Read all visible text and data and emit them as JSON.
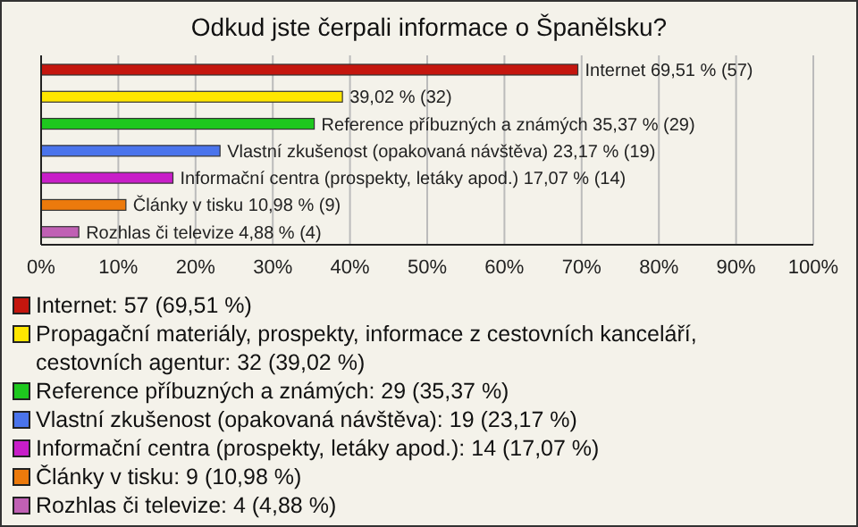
{
  "chart_data": {
    "type": "bar",
    "orientation": "horizontal",
    "stacked": true,
    "title": "Odkud jste čerpali informace o Španělsku?",
    "categories": [
      null,
      null,
      null,
      null,
      null,
      null,
      null
    ],
    "series": [
      {
        "name": "Internet: 57 (69,51 %)",
        "color": "#c4160e",
        "values": [
          69.51,
          null,
          null,
          null,
          null,
          null,
          null
        ],
        "value_labels": [
          "Internet 69,51 % (57)",
          null,
          null,
          null,
          null,
          null,
          null
        ]
      },
      {
        "name": "Propagační materiály, prospekty, informace z cestovních kanceláří, cestovních agentur: 32 (39,02 %)",
        "color": "#ffe600",
        "values": [
          null,
          39.02,
          null,
          null,
          null,
          null,
          null
        ],
        "value_labels": [
          null,
          "39,02 % (32)",
          null,
          null,
          null,
          null,
          null
        ]
      },
      {
        "name": "Reference příbuzných a známých: 29 (35,37 %)",
        "color": "#1ec81e",
        "values": [
          null,
          null,
          35.37,
          null,
          null,
          null,
          null
        ],
        "value_labels": [
          null,
          null,
          "Reference příbuzných a známých 35,37 % (29)",
          null,
          null,
          null,
          null
        ]
      },
      {
        "name": "Vlastní zkušenost (opakovaná návštěva): 19 (23,17 %)",
        "color": "#4a74ec",
        "values": [
          null,
          null,
          null,
          23.17,
          null,
          null,
          null
        ],
        "value_labels": [
          null,
          null,
          null,
          "Vlastní zkušenost (opakovaná návštěva) 23,17 % (19)",
          null,
          null,
          null
        ]
      },
      {
        "name": "Informační centra (prospekty, letáky apod.): 14 (17,07 %)",
        "color": "#c81ec8",
        "values": [
          null,
          null,
          null,
          null,
          17.07,
          null,
          null
        ],
        "value_labels": [
          null,
          null,
          null,
          null,
          "Informační centra (prospekty, letáky apod.) 17,07 % (14)",
          null,
          null
        ]
      },
      {
        "name": "Články v tisku: 9 (10,98 %)",
        "color": "#ec7a0c",
        "values": [
          null,
          null,
          null,
          null,
          null,
          10.98,
          null
        ],
        "value_labels": [
          null,
          null,
          null,
          null,
          null,
          "Články v tisku 10,98 % (9)",
          null
        ]
      },
      {
        "name": "Rozhlas či televize: 4 (4,88 %)",
        "color": "#c060b4",
        "values": [
          null,
          null,
          null,
          null,
          null,
          null,
          4.88
        ],
        "value_labels": [
          null,
          null,
          null,
          null,
          null,
          null,
          "Rozhlas či televize 4,88 % (4)"
        ]
      }
    ],
    "xlim": [
      0,
      100
    ],
    "xticks": [
      {
        "value": 0,
        "label": "0%"
      },
      {
        "value": 10,
        "label": "10%"
      },
      {
        "value": 20,
        "label": "20%"
      },
      {
        "value": 30,
        "label": "30%"
      },
      {
        "value": 40,
        "label": "40%"
      },
      {
        "value": 50,
        "label": "50%"
      },
      {
        "value": 60,
        "label": "60%"
      },
      {
        "value": 70,
        "label": "70%"
      },
      {
        "value": 80,
        "label": "80%"
      },
      {
        "value": 90,
        "label": "90%"
      },
      {
        "value": 100,
        "label": "100%"
      }
    ],
    "tick_labels": "x",
    "grid": "x",
    "legend": "bottom"
  }
}
